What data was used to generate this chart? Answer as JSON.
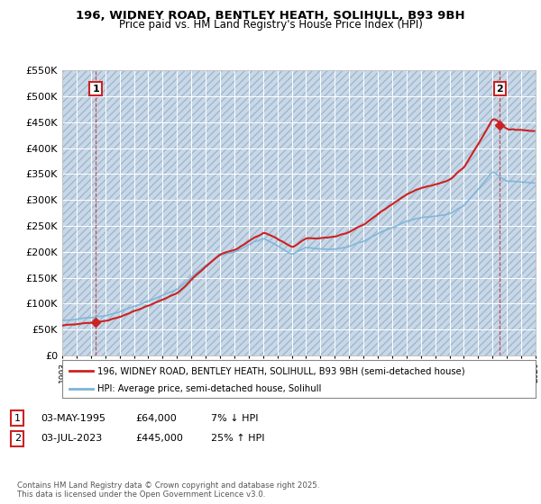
{
  "title_line1": "196, WIDNEY ROAD, BENTLEY HEATH, SOLIHULL, B93 9BH",
  "title_line2": "Price paid vs. HM Land Registry's House Price Index (HPI)",
  "xlim": [
    1993.0,
    2026.0
  ],
  "ylim": [
    0,
    550000
  ],
  "yticks": [
    0,
    50000,
    100000,
    150000,
    200000,
    250000,
    300000,
    350000,
    400000,
    450000,
    500000,
    550000
  ],
  "ytick_labels": [
    "£0",
    "£50K",
    "£100K",
    "£150K",
    "£200K",
    "£250K",
    "£300K",
    "£350K",
    "£400K",
    "£450K",
    "£500K",
    "£550K"
  ],
  "hpi_color": "#7ab4d8",
  "price_color": "#cc2222",
  "sale1_x": 1995.33,
  "sale1_y": 64000,
  "sale2_x": 2023.5,
  "sale2_y": 445000,
  "annotation1_label": "1",
  "annotation2_label": "2",
  "legend_line1": "196, WIDNEY ROAD, BENTLEY HEATH, SOLIHULL, B93 9BH (semi-detached house)",
  "legend_line2": "HPI: Average price, semi-detached house, Solihull",
  "table_row1": [
    "1",
    "03-MAY-1995",
    "£64,000",
    "7% ↓ HPI"
  ],
  "table_row2": [
    "2",
    "03-JUL-2023",
    "£445,000",
    "25% ↑ HPI"
  ],
  "footer": "Contains HM Land Registry data © Crown copyright and database right 2025.\nThis data is licensed under the Open Government Licence v3.0.",
  "bg_plot": "#dde8f0",
  "bg_hatch": "#c8d8e8",
  "grid_color": "#ffffff",
  "xtick_start": 1993,
  "xtick_end": 2026
}
